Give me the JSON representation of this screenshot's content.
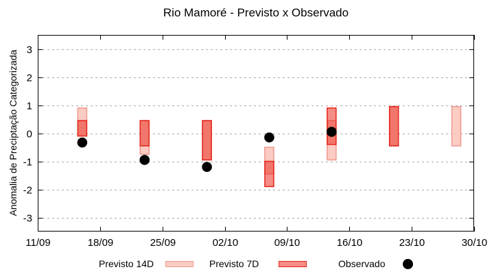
{
  "chart_data": {
    "type": "range-bar",
    "title": "Rio Mamoré - Previsto x Observado",
    "ylabel": "Anomalia de Preciptação Categorizada",
    "xlabel": "",
    "ylim": [
      -3.5,
      3.5
    ],
    "yticks": [
      3,
      2,
      1,
      0,
      -1,
      -2,
      -3
    ],
    "grid": "horizontal-dashed",
    "xlim_days": [
      0,
      49
    ],
    "xticks": [
      {
        "day": 0,
        "label": "11/09"
      },
      {
        "day": 7,
        "label": "18/09"
      },
      {
        "day": 14,
        "label": "25/09"
      },
      {
        "day": 21,
        "label": "02/10"
      },
      {
        "day": 28,
        "label": "09/10"
      },
      {
        "day": 35,
        "label": "16/10"
      },
      {
        "day": 42,
        "label": "23/10"
      },
      {
        "day": 49,
        "label": "30/10"
      }
    ],
    "legend": [
      "Previsto 14D",
      "Previsto 7D",
      "Observado"
    ],
    "legend_position": "bottom",
    "bars": [
      {
        "date": "16/09",
        "day": 5,
        "previsto_14d": [
          -0.1,
          0.9
        ],
        "previsto_7d": [
          -0.1,
          0.45
        ],
        "observado": -0.33
      },
      {
        "date": "23/09",
        "day": 12,
        "previsto_14d": [
          -0.75,
          0.45
        ],
        "previsto_7d": [
          -0.45,
          0.45
        ],
        "observado": -0.95
      },
      {
        "date": "30/09",
        "day": 19,
        "previsto_14d": [
          -0.95,
          0.45
        ],
        "previsto_7d": [
          -0.95,
          0.45
        ],
        "observado": -1.2
      },
      {
        "date": "07/10",
        "day": 26,
        "previsto_14d": [
          -1.45,
          -0.5
        ],
        "previsto_7d": [
          -1.9,
          -1.0
        ],
        "observado": -0.15
      },
      {
        "date": "14/10",
        "day": 33,
        "previsto_14d": [
          -0.95,
          0.45
        ],
        "previsto_7d": [
          -0.4,
          0.9
        ],
        "observado": 0.05
      },
      {
        "date": "21/10",
        "day": 40,
        "previsto_14d": [
          -0.45,
          0.95
        ],
        "previsto_7d": [
          -0.45,
          0.95
        ],
        "observado": null
      },
      {
        "date": "28/10",
        "day": 47,
        "previsto_14d": [
          -0.45,
          0.95
        ],
        "previsto_7d": null,
        "observado": null
      }
    ],
    "colors": {
      "previsto_14d_fill": "#fbccc3",
      "previsto_14d_border": "#f0978d",
      "previsto_7d_base": "#e92f23",
      "previsto_7d_alpha": 0.55,
      "previsto_7d_border": "#e5241b",
      "observado": "#000000",
      "grid": "#aaaaaa",
      "axis": "#000000"
    }
  }
}
